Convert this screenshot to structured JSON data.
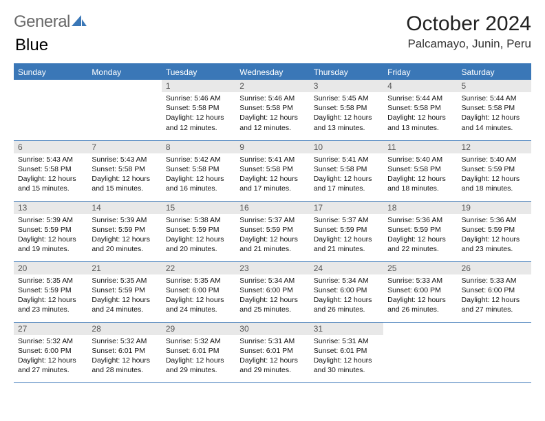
{
  "logo": {
    "text1": "General",
    "text2": "Blue",
    "icon_color": "#3a77b7"
  },
  "title": "October 2024",
  "location": "Palcamayo, Junin, Peru",
  "colors": {
    "header_bg": "#3a77b7",
    "header_fg": "#ffffff",
    "daynum_bg": "#e8e8e8",
    "daynum_fg": "#555555",
    "border": "#3a77b7",
    "page_bg": "#ffffff",
    "text": "#111111"
  },
  "weekdays": [
    "Sunday",
    "Monday",
    "Tuesday",
    "Wednesday",
    "Thursday",
    "Friday",
    "Saturday"
  ],
  "grid": {
    "columns": 7,
    "rows": 5,
    "start_weekday_index": 2
  },
  "days": [
    {
      "n": "1",
      "sunrise": "5:46 AM",
      "sunset": "5:58 PM",
      "daylight": "12 hours and 12 minutes."
    },
    {
      "n": "2",
      "sunrise": "5:46 AM",
      "sunset": "5:58 PM",
      "daylight": "12 hours and 12 minutes."
    },
    {
      "n": "3",
      "sunrise": "5:45 AM",
      "sunset": "5:58 PM",
      "daylight": "12 hours and 13 minutes."
    },
    {
      "n": "4",
      "sunrise": "5:44 AM",
      "sunset": "5:58 PM",
      "daylight": "12 hours and 13 minutes."
    },
    {
      "n": "5",
      "sunrise": "5:44 AM",
      "sunset": "5:58 PM",
      "daylight": "12 hours and 14 minutes."
    },
    {
      "n": "6",
      "sunrise": "5:43 AM",
      "sunset": "5:58 PM",
      "daylight": "12 hours and 15 minutes."
    },
    {
      "n": "7",
      "sunrise": "5:43 AM",
      "sunset": "5:58 PM",
      "daylight": "12 hours and 15 minutes."
    },
    {
      "n": "8",
      "sunrise": "5:42 AM",
      "sunset": "5:58 PM",
      "daylight": "12 hours and 16 minutes."
    },
    {
      "n": "9",
      "sunrise": "5:41 AM",
      "sunset": "5:58 PM",
      "daylight": "12 hours and 17 minutes."
    },
    {
      "n": "10",
      "sunrise": "5:41 AM",
      "sunset": "5:58 PM",
      "daylight": "12 hours and 17 minutes."
    },
    {
      "n": "11",
      "sunrise": "5:40 AM",
      "sunset": "5:58 PM",
      "daylight": "12 hours and 18 minutes."
    },
    {
      "n": "12",
      "sunrise": "5:40 AM",
      "sunset": "5:59 PM",
      "daylight": "12 hours and 18 minutes."
    },
    {
      "n": "13",
      "sunrise": "5:39 AM",
      "sunset": "5:59 PM",
      "daylight": "12 hours and 19 minutes."
    },
    {
      "n": "14",
      "sunrise": "5:39 AM",
      "sunset": "5:59 PM",
      "daylight": "12 hours and 20 minutes."
    },
    {
      "n": "15",
      "sunrise": "5:38 AM",
      "sunset": "5:59 PM",
      "daylight": "12 hours and 20 minutes."
    },
    {
      "n": "16",
      "sunrise": "5:37 AM",
      "sunset": "5:59 PM",
      "daylight": "12 hours and 21 minutes."
    },
    {
      "n": "17",
      "sunrise": "5:37 AM",
      "sunset": "5:59 PM",
      "daylight": "12 hours and 21 minutes."
    },
    {
      "n": "18",
      "sunrise": "5:36 AM",
      "sunset": "5:59 PM",
      "daylight": "12 hours and 22 minutes."
    },
    {
      "n": "19",
      "sunrise": "5:36 AM",
      "sunset": "5:59 PM",
      "daylight": "12 hours and 23 minutes."
    },
    {
      "n": "20",
      "sunrise": "5:35 AM",
      "sunset": "5:59 PM",
      "daylight": "12 hours and 23 minutes."
    },
    {
      "n": "21",
      "sunrise": "5:35 AM",
      "sunset": "5:59 PM",
      "daylight": "12 hours and 24 minutes."
    },
    {
      "n": "22",
      "sunrise": "5:35 AM",
      "sunset": "6:00 PM",
      "daylight": "12 hours and 24 minutes."
    },
    {
      "n": "23",
      "sunrise": "5:34 AM",
      "sunset": "6:00 PM",
      "daylight": "12 hours and 25 minutes."
    },
    {
      "n": "24",
      "sunrise": "5:34 AM",
      "sunset": "6:00 PM",
      "daylight": "12 hours and 26 minutes."
    },
    {
      "n": "25",
      "sunrise": "5:33 AM",
      "sunset": "6:00 PM",
      "daylight": "12 hours and 26 minutes."
    },
    {
      "n": "26",
      "sunrise": "5:33 AM",
      "sunset": "6:00 PM",
      "daylight": "12 hours and 27 minutes."
    },
    {
      "n": "27",
      "sunrise": "5:32 AM",
      "sunset": "6:00 PM",
      "daylight": "12 hours and 27 minutes."
    },
    {
      "n": "28",
      "sunrise": "5:32 AM",
      "sunset": "6:01 PM",
      "daylight": "12 hours and 28 minutes."
    },
    {
      "n": "29",
      "sunrise": "5:32 AM",
      "sunset": "6:01 PM",
      "daylight": "12 hours and 29 minutes."
    },
    {
      "n": "30",
      "sunrise": "5:31 AM",
      "sunset": "6:01 PM",
      "daylight": "12 hours and 29 minutes."
    },
    {
      "n": "31",
      "sunrise": "5:31 AM",
      "sunset": "6:01 PM",
      "daylight": "12 hours and 30 minutes."
    }
  ],
  "labels": {
    "sunrise": "Sunrise:",
    "sunset": "Sunset:",
    "daylight": "Daylight:"
  }
}
